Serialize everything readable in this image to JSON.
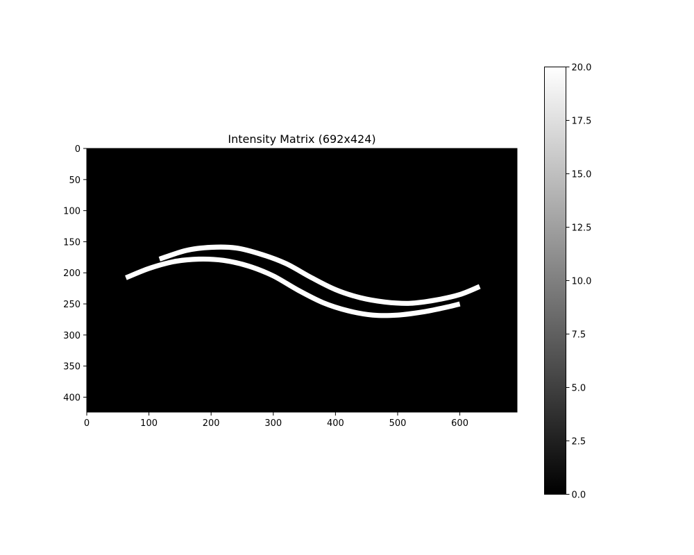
{
  "chart_data": {
    "type": "heatmap",
    "title": "Intensity Matrix (692x424)",
    "xlabel": "",
    "ylabel": "",
    "matrix_width": 692,
    "matrix_height": 424,
    "xlim": [
      0,
      692
    ],
    "ylim": [
      424,
      0
    ],
    "x_ticks": [
      0,
      100,
      200,
      300,
      400,
      500,
      600
    ],
    "y_ticks": [
      0,
      50,
      100,
      150,
      200,
      250,
      300,
      350,
      400
    ],
    "colormap": "gray",
    "background_value": 0.0,
    "band_value": 20.0,
    "colorbar": {
      "min": 0.0,
      "max": 20.0,
      "ticks": [
        "0.0",
        "2.5",
        "5.0",
        "7.5",
        "10.0",
        "12.5",
        "15.0",
        "17.5",
        "20.0"
      ]
    },
    "bands": [
      {
        "name": "",
        "thickness": 8,
        "centerline": [
          [
            117,
            178
          ],
          [
            160,
            164
          ],
          [
            200,
            159
          ],
          [
            240,
            160
          ],
          [
            280,
            170
          ],
          [
            320,
            185
          ],
          [
            360,
            207
          ],
          [
            400,
            227
          ],
          [
            440,
            240
          ],
          [
            480,
            247
          ],
          [
            520,
            249
          ],
          [
            560,
            244
          ],
          [
            600,
            235
          ],
          [
            632,
            222
          ]
        ]
      },
      {
        "name": "",
        "thickness": 8,
        "centerline": [
          [
            63,
            208
          ],
          [
            100,
            193
          ],
          [
            140,
            182
          ],
          [
            180,
            178
          ],
          [
            220,
            180
          ],
          [
            260,
            189
          ],
          [
            300,
            205
          ],
          [
            340,
            228
          ],
          [
            380,
            248
          ],
          [
            420,
            261
          ],
          [
            460,
            268
          ],
          [
            500,
            268
          ],
          [
            540,
            263
          ],
          [
            580,
            255
          ],
          [
            600,
            250
          ]
        ]
      }
    ]
  }
}
